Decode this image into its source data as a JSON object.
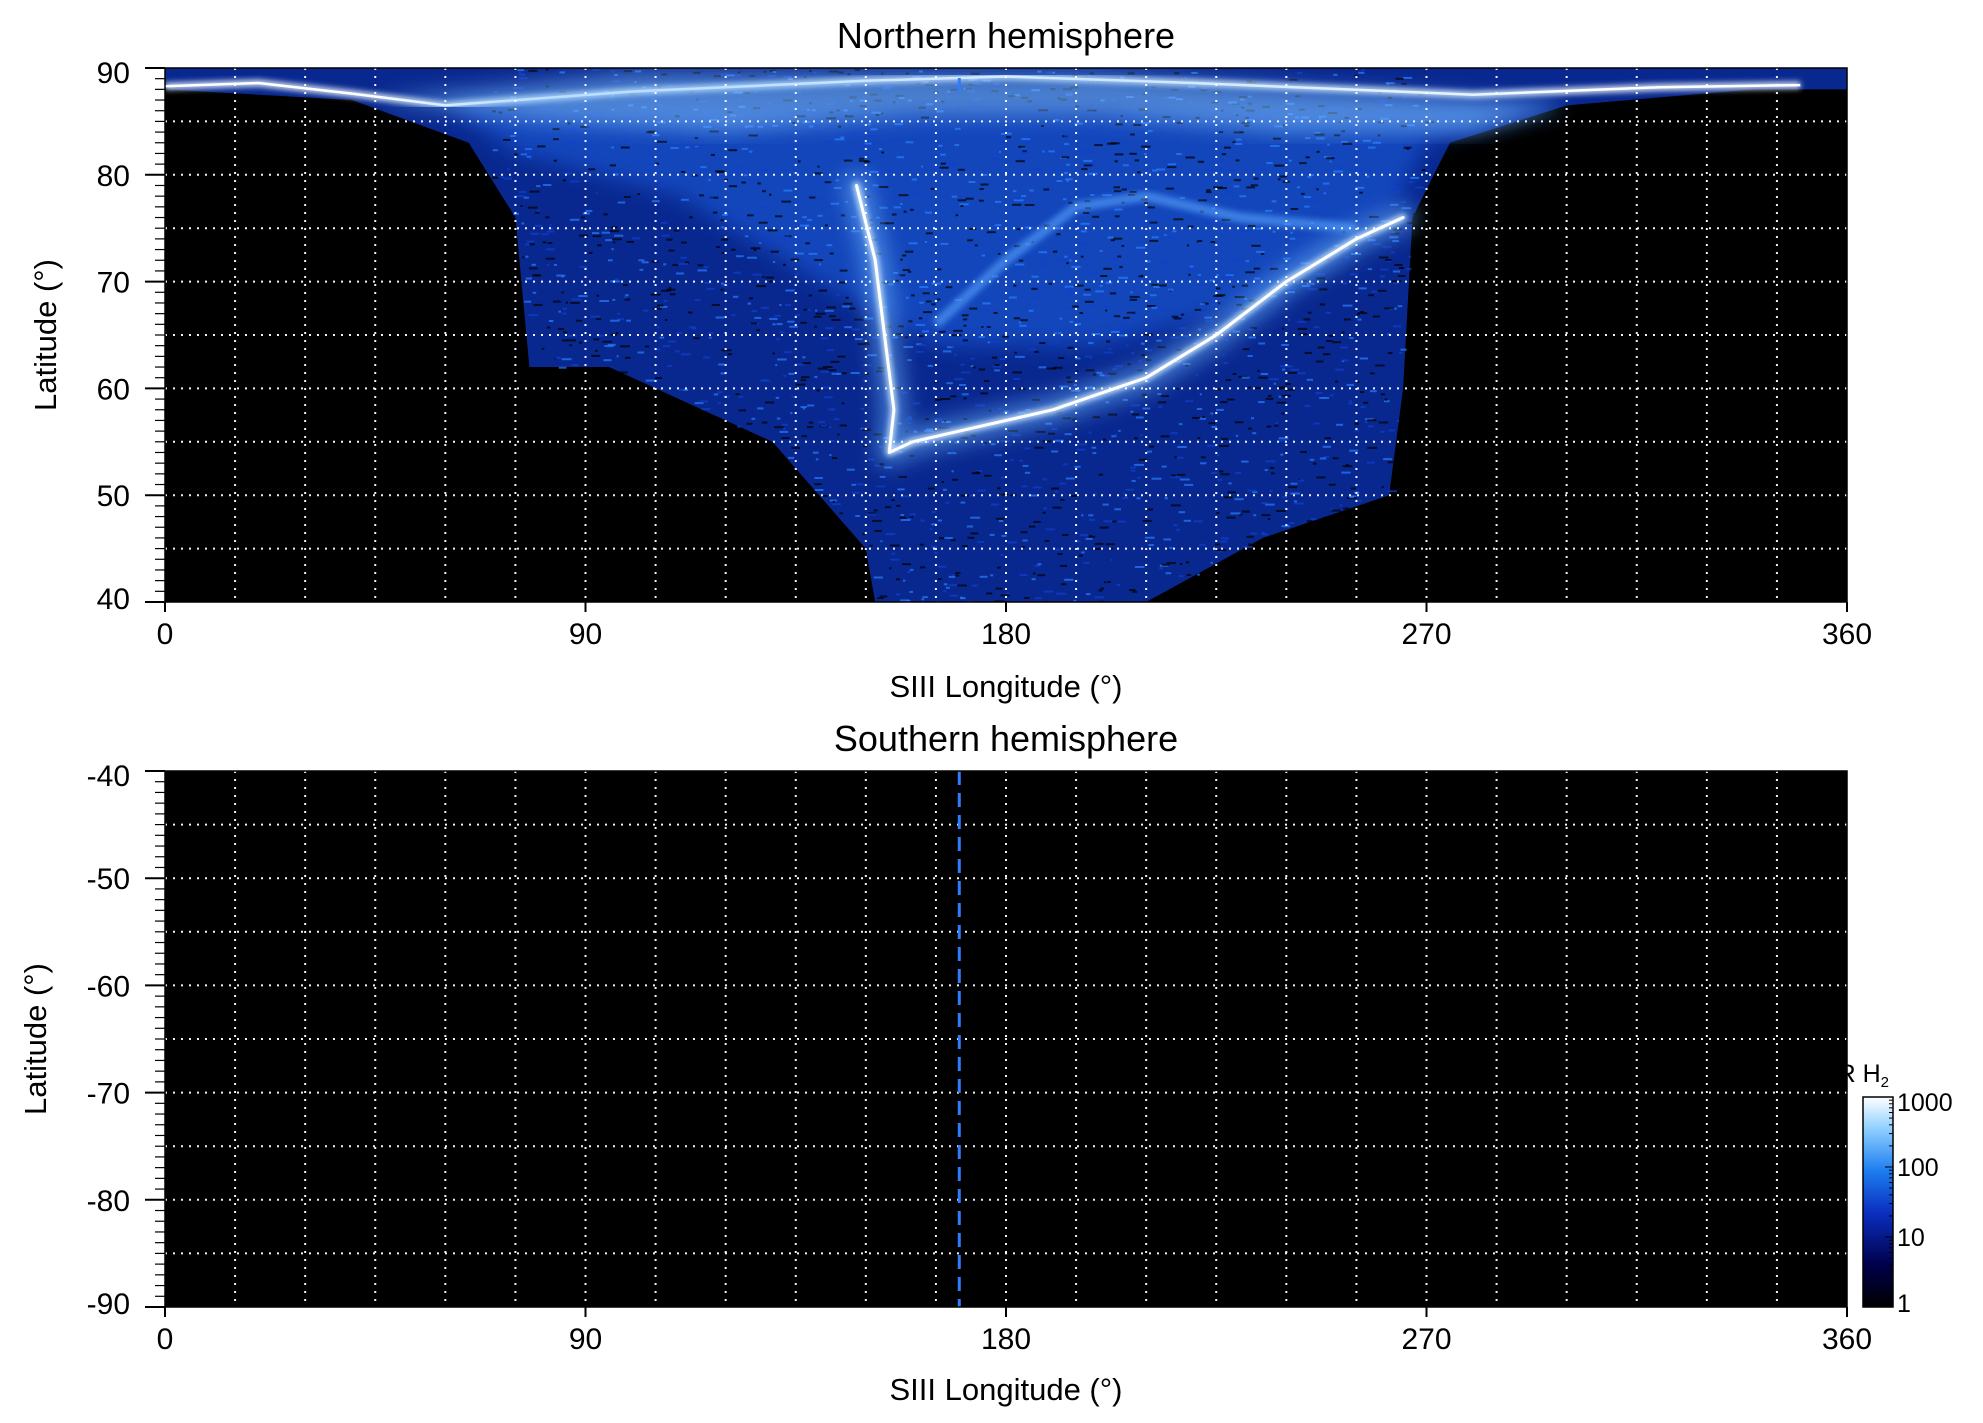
{
  "chart_data": [
    {
      "type": "heatmap",
      "title": "Northern hemisphere",
      "xlabel": "SIII Longitude (°)",
      "ylabel": "Latitude (°)",
      "xlim": [
        0,
        360
      ],
      "ylim": [
        40,
        90
      ],
      "xticks": [
        0,
        90,
        180,
        270,
        360
      ],
      "xtick_labels": [
        "0",
        "90",
        "180",
        "270",
        "360"
      ],
      "yticks": [
        40,
        50,
        60,
        70,
        80,
        90
      ],
      "ytick_labels": [
        "40",
        "50",
        "60",
        "70",
        "80",
        "90"
      ],
      "grid": true,
      "grid_style": "dotted white, every 15° longitude and 5° latitude",
      "background": "#000000",
      "features": {
        "main_oval": [
          [
            155,
            54
          ],
          [
            160,
            55
          ],
          [
            170,
            56
          ],
          [
            190,
            58
          ],
          [
            210,
            61
          ],
          [
            225,
            65
          ],
          [
            240,
            70
          ],
          [
            255,
            74
          ],
          [
            265,
            76
          ]
        ],
        "oval_dawn_arm": [
          [
            148,
            79
          ],
          [
            152,
            72
          ],
          [
            154,
            65
          ],
          [
            156,
            58
          ],
          [
            155,
            54
          ]
        ],
        "emission_envelope": [
          [
            0,
            88
          ],
          [
            40,
            87
          ],
          [
            65,
            83
          ],
          [
            75,
            76
          ],
          [
            78,
            62
          ],
          [
            95,
            62
          ],
          [
            130,
            55
          ],
          [
            150,
            45
          ],
          [
            152,
            40
          ],
          [
            210,
            40
          ],
          [
            235,
            46
          ],
          [
            262,
            50
          ],
          [
            265,
            60
          ],
          [
            267,
            76
          ],
          [
            275,
            83
          ],
          [
            300,
            86.5
          ],
          [
            340,
            88
          ],
          [
            360,
            88
          ]
        ],
        "dashed_marker_longitude": 170
      }
    },
    {
      "type": "heatmap",
      "title": "Southern hemisphere",
      "xlabel": "SIII Longitude (°)",
      "ylabel": "Latitude (°)",
      "xlim": [
        0,
        360
      ],
      "ylim": [
        -90,
        -40
      ],
      "xticks": [
        0,
        90,
        180,
        270,
        360
      ],
      "xtick_labels": [
        "0",
        "90",
        "180",
        "270",
        "360"
      ],
      "yticks": [
        -90,
        -80,
        -70,
        -60,
        -50,
        -40
      ],
      "ytick_labels": [
        "-90",
        "-80",
        "-70",
        "-60",
        "-50",
        "-40"
      ],
      "grid": true,
      "background": "#000000",
      "features": {
        "dashed_marker_longitude": 170
      }
    }
  ],
  "colorbar": {
    "label": "kR H",
    "label_sub": "2",
    "scale": "log",
    "range": [
      1,
      1000
    ],
    "ticks": [
      "1",
      "10",
      "100",
      "1000"
    ],
    "colors": [
      "#000000",
      "#00004a",
      "#0a2fc0",
      "#1e7ef0",
      "#8fd0ff",
      "#ffffff"
    ]
  }
}
